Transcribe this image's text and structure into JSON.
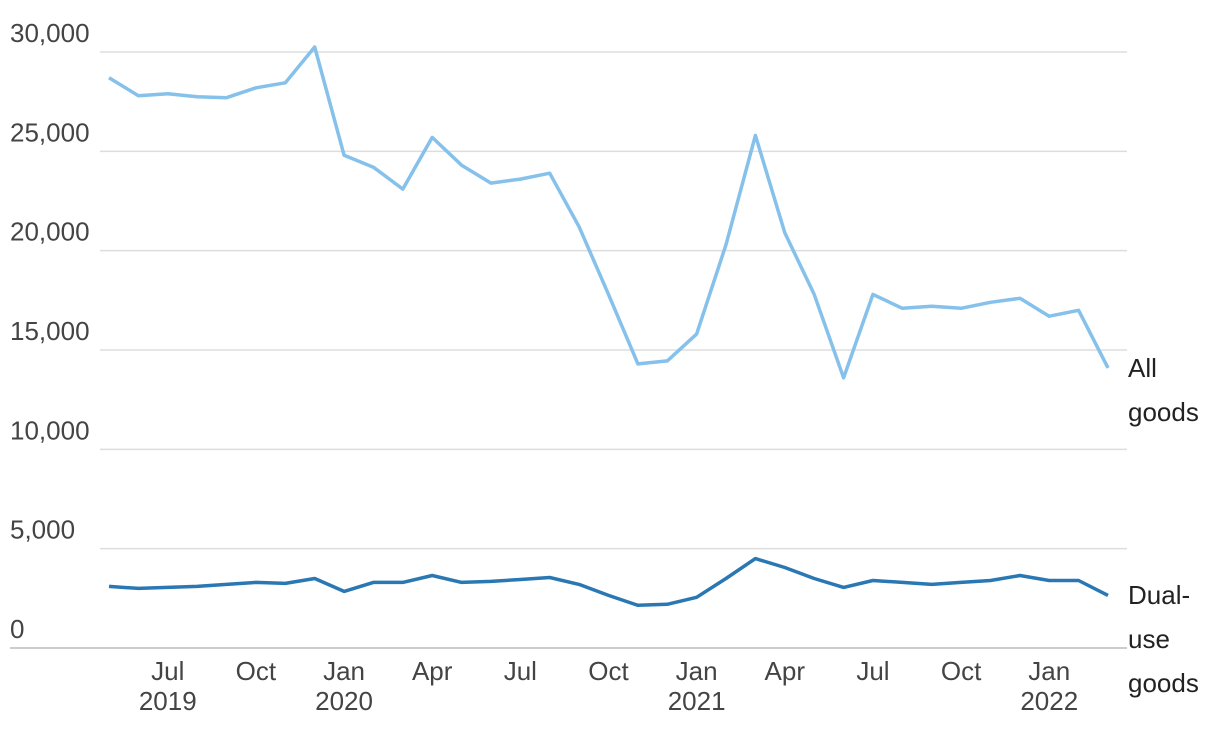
{
  "chart_data": {
    "type": "line",
    "categories": [
      null,
      null,
      "Jul",
      null,
      null,
      "Oct",
      null,
      null,
      "Jan",
      null,
      null,
      "Apr",
      null,
      null,
      "Jul",
      null,
      null,
      "Oct",
      null,
      null,
      "Jan",
      null,
      null,
      "Apr",
      null,
      null,
      "Jul",
      null,
      null,
      "Oct",
      null,
      null,
      "Jan",
      null,
      null
    ],
    "year_labels": [
      null,
      null,
      "2019",
      null,
      null,
      null,
      null,
      null,
      "2020",
      null,
      null,
      null,
      null,
      null,
      null,
      null,
      null,
      null,
      null,
      null,
      "2021",
      null,
      null,
      null,
      null,
      null,
      null,
      null,
      null,
      null,
      null,
      null,
      "2022",
      null,
      null
    ],
    "series": [
      {
        "name": "All goods",
        "color": "#85c1ea",
        "values": [
          28700,
          27800,
          27900,
          27750,
          27700,
          28200,
          28450,
          30250,
          24800,
          24200,
          23100,
          25700,
          24300,
          23400,
          23600,
          23900,
          21200,
          17800,
          14300,
          14450,
          15800,
          20300,
          25800,
          20900,
          17800,
          13600,
          17800,
          17100,
          17200,
          17100,
          17400,
          17600,
          16700,
          17000,
          14100
        ]
      },
      {
        "name": "Dual-use goods",
        "color": "#2a78b3",
        "values": [
          3100,
          3000,
          3050,
          3100,
          3200,
          3300,
          3250,
          3500,
          2850,
          3300,
          3300,
          3650,
          3300,
          3350,
          3450,
          3550,
          3200,
          2650,
          2150,
          2200,
          2550,
          3500,
          4500,
          4050,
          3500,
          3050,
          3400,
          3300,
          3200,
          3300,
          3400,
          3650,
          3400,
          3400,
          2650
        ]
      }
    ],
    "ylim": [
      0,
      30000
    ],
    "yticks": [
      0,
      {
        "value": 5000,
        "label": "5,000"
      },
      {
        "value": 10000,
        "label": "10,000"
      },
      {
        "value": 15000,
        "label": "15,000"
      },
      {
        "value": 20000,
        "label": "20,000"
      },
      {
        "value": 25000,
        "label": "25,000"
      },
      {
        "value": 30000,
        "label": "30,000"
      }
    ],
    "grid": true
  }
}
